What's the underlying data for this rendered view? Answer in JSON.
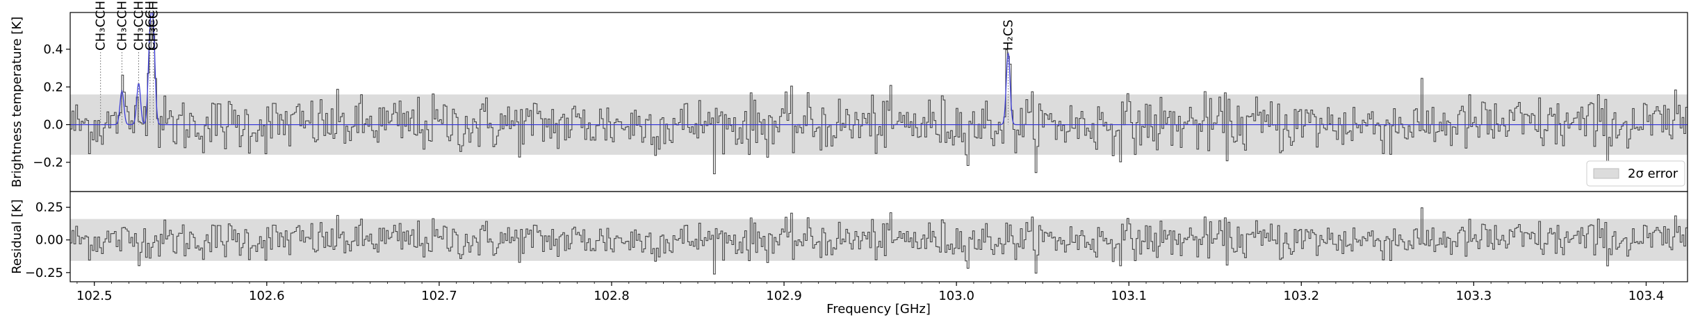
{
  "chart_data": [
    {
      "type": "line",
      "panel": "top",
      "ylabel": "Brightness temperature [K]",
      "xlim": [
        102.486,
        103.424
      ],
      "ylim": [
        -0.355,
        0.595
      ],
      "yticks": [
        -0.2,
        0.0,
        0.2,
        0.4
      ],
      "ytick_labels": [
        "−0.2",
        "0.0",
        "0.2",
        "0.4"
      ],
      "error_band_2sigma": [
        -0.16,
        0.16
      ],
      "legend": {
        "position": "lower-right",
        "label": "2σ error"
      },
      "series": [
        {
          "kind": "observed spectrum (step)",
          "color": "#444444",
          "noise_rms": 0.075
        },
        {
          "kind": "model fit",
          "color": "#3a3ad8"
        }
      ],
      "lines": [
        {
          "label": "CH₃CCH",
          "freq": 102.5036,
          "peak": 0.0
        },
        {
          "label": "CH₃CCH",
          "freq": 102.516,
          "peak": 0.18
        },
        {
          "label": "CH₃CCH",
          "freq": 102.5257,
          "peak": 0.22
        },
        {
          "label": "CH₃CCH",
          "freq": 102.5323,
          "peak": 0.43
        },
        {
          "label": "CH₃CCH",
          "freq": 102.5342,
          "peak": 0.45
        },
        {
          "label": "H₂CS",
          "freq": 103.03,
          "peak": 0.38
        }
      ]
    },
    {
      "type": "line",
      "panel": "bottom",
      "xlabel": "Frequency [GHz]",
      "ylabel": "Residual [K]",
      "xlim": [
        102.486,
        103.424
      ],
      "ylim": [
        -0.32,
        0.37
      ],
      "yticks": [
        -0.25,
        0.0,
        0.25
      ],
      "ytick_labels": [
        "−0.25",
        "0.00",
        "0.25"
      ],
      "xticks": [
        102.5,
        102.6,
        102.7,
        102.8,
        102.9,
        103.0,
        103.1,
        103.2,
        103.3,
        103.4
      ],
      "xtick_labels": [
        "102.5",
        "102.6",
        "102.7",
        "102.8",
        "102.9",
        "103.0",
        "103.1",
        "103.2",
        "103.3",
        "103.4"
      ],
      "error_band_2sigma": [
        -0.16,
        0.16
      ],
      "series": [
        {
          "kind": "residual (step)",
          "color": "#444444",
          "noise_rms": 0.075
        }
      ]
    }
  ],
  "labels": {
    "top_ylabel": "Brightness temperature [K]",
    "bottom_ylabel": "Residual [K]",
    "xlabel": "Frequency [GHz]",
    "legend_label": "2σ error"
  }
}
